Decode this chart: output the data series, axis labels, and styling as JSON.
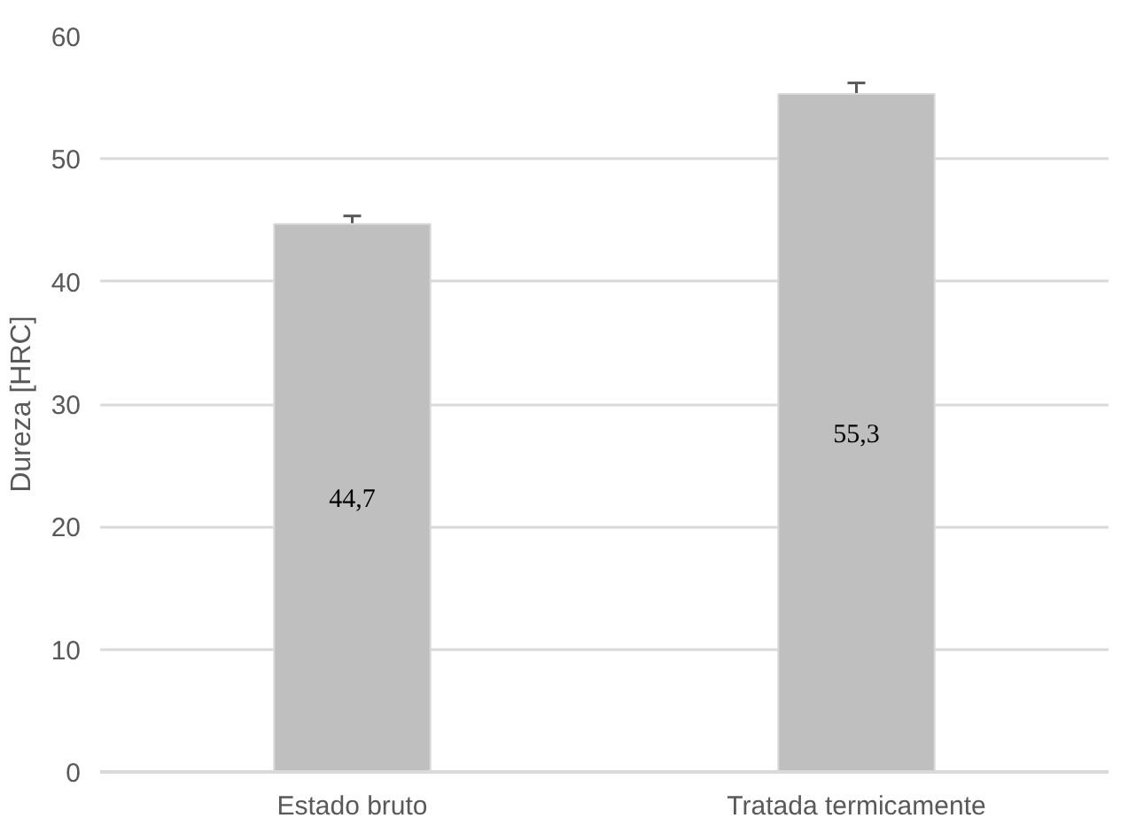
{
  "chart_data": {
    "type": "bar",
    "ylabel": "Dureza [HRC]",
    "categories": [
      "Estado bruto",
      "Tratada termicamente"
    ],
    "values": [
      44.7,
      55.3
    ],
    "color": "#bfbfbf",
    "errors": [
      0.65,
      0.9
    ],
    "value_labels": [
      "44,7",
      "55,3"
    ],
    "ylim": [
      0,
      60
    ],
    "yticks": [
      0,
      10,
      20,
      30,
      40,
      50,
      60
    ],
    "grid": "y"
  }
}
